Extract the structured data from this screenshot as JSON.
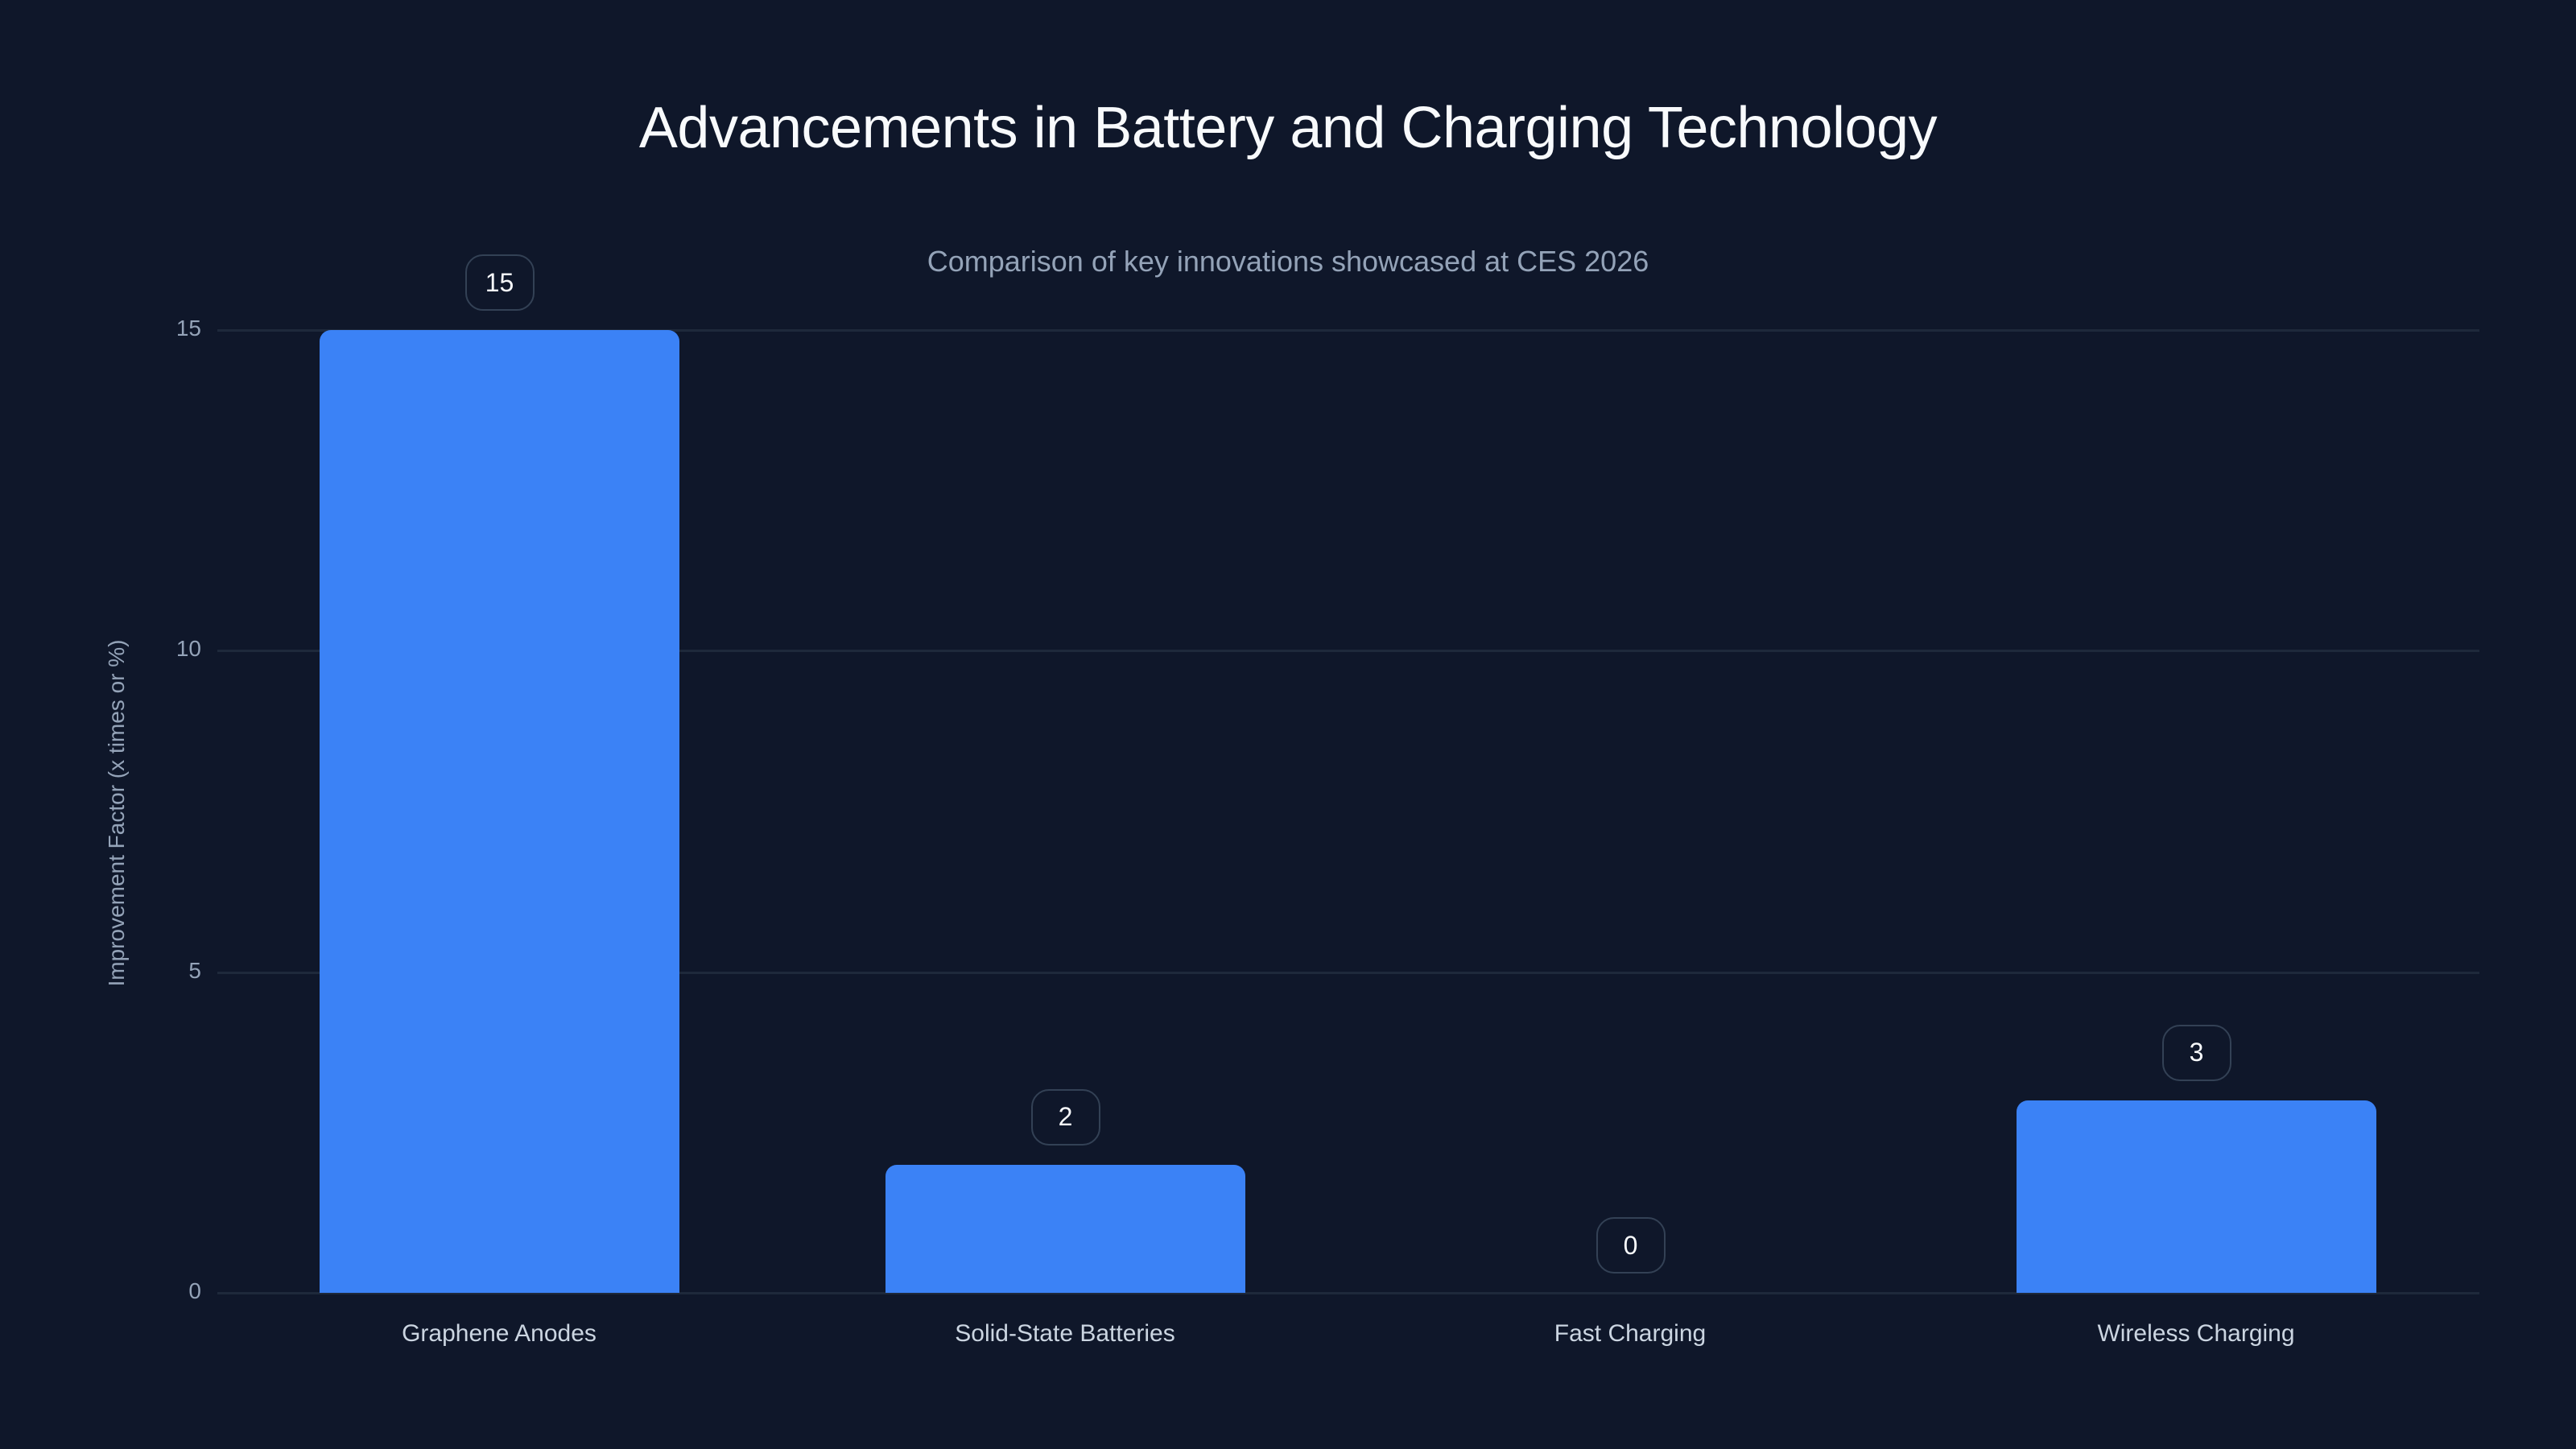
{
  "chart": {
    "title": "Advancements in Battery and Charging Technology",
    "subtitle": "Comparison of key innovations showcased at CES 2026",
    "ylabel": "Improvement Factor (x times or %)",
    "yticks": [
      "0",
      "5",
      "10",
      "15"
    ],
    "categories": [
      "Graphene Anodes",
      "Solid-State Batteries",
      "Fast Charging",
      "Wireless Charging"
    ],
    "value_labels": [
      "15",
      "2",
      "0",
      "3"
    ]
  },
  "colors": {
    "background": "#0f172a",
    "bar": "#3b82f6",
    "gridline": "#1e293b",
    "title": "#f8fafc",
    "subtitle": "#94a3b8",
    "axis_text": "#94a3b8",
    "category_text": "#cbd5e1",
    "label_border": "#334155"
  },
  "chart_data": {
    "type": "bar",
    "title": "Advancements in Battery and Charging Technology",
    "subtitle": "Comparison of key innovations showcased at CES 2026",
    "categories": [
      "Graphene Anodes",
      "Solid-State Batteries",
      "Fast Charging",
      "Wireless Charging"
    ],
    "values": [
      15,
      2,
      0,
      3
    ],
    "xlabel": "",
    "ylabel": "Improvement Factor (x times or %)",
    "ylim": [
      0,
      15
    ],
    "yticks": [
      0,
      5,
      10,
      15
    ],
    "grid": true,
    "legend": null,
    "data_labels": true
  }
}
